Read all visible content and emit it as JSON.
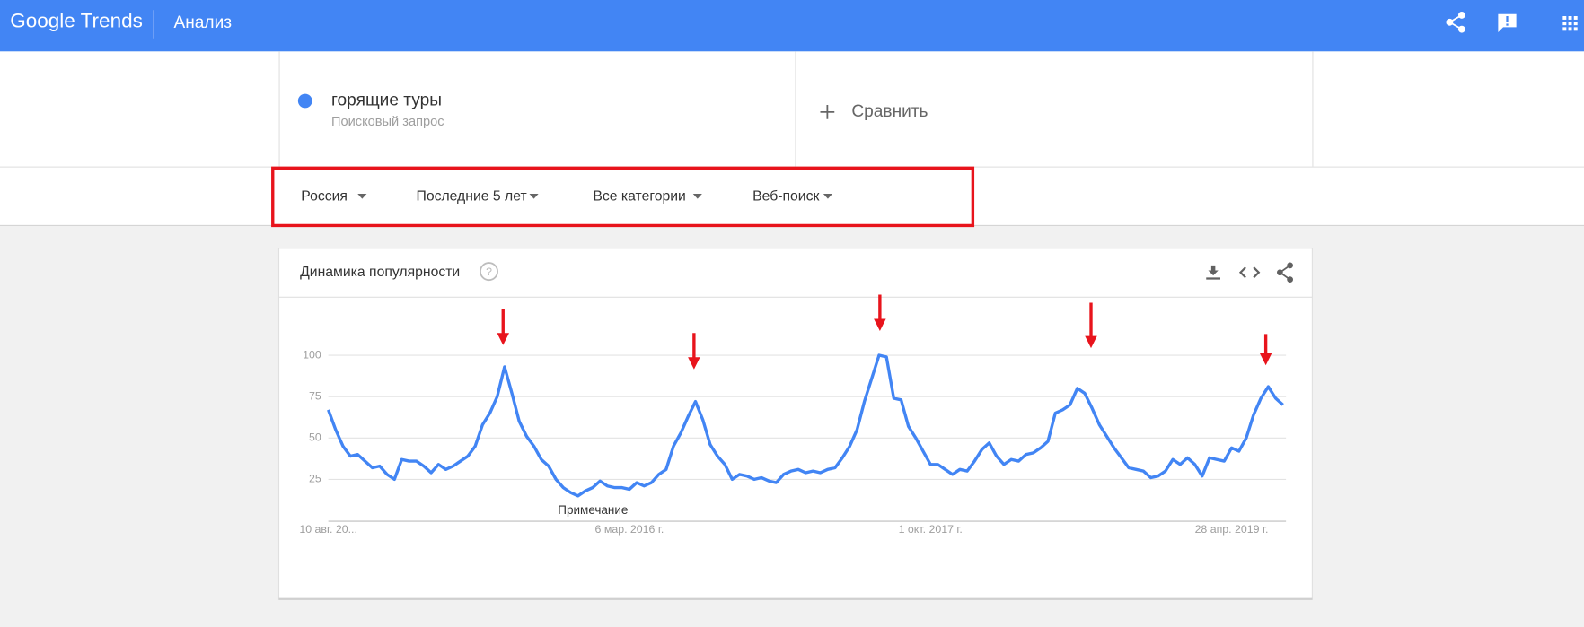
{
  "header": {
    "logo": "Google Trends",
    "section": "Анализ"
  },
  "search": {
    "term": "горящие туры",
    "term_type": "Поисковый запрос",
    "compare": "Сравнить"
  },
  "filters": [
    "Россия",
    "Последние 5 лет",
    "Все категории",
    "Веб-поиск"
  ],
  "chart_data": {
    "type": "line",
    "title": "Динамика популярности",
    "annotation": "Примечание",
    "categories": [
      "10 авг. 20...",
      null,
      null,
      null,
      null,
      null,
      null,
      null,
      null,
      null,
      null,
      null,
      null,
      null,
      null,
      null,
      null,
      null,
      null,
      null,
      null,
      null,
      null,
      null,
      null,
      null,
      null,
      null,
      null,
      null,
      null,
      null,
      null,
      null,
      null,
      null,
      null,
      null,
      null,
      null,
      null,
      "6 мар. 2016 г.",
      null,
      null,
      null,
      null,
      null,
      null,
      null,
      null,
      null,
      null,
      null,
      null,
      null,
      null,
      null,
      null,
      null,
      null,
      null,
      null,
      null,
      null,
      null,
      null,
      null,
      null,
      null,
      null,
      null,
      null,
      null,
      null,
      null,
      null,
      null,
      null,
      null,
      null,
      null,
      null,
      "1 окт. 2017 г.",
      null,
      null,
      null,
      null,
      null,
      null,
      null,
      null,
      null,
      null,
      null,
      null,
      null,
      null,
      null,
      null,
      null,
      null,
      null,
      null,
      null,
      null,
      null,
      null,
      null,
      null,
      null,
      null,
      null,
      null,
      null,
      null,
      null,
      null,
      null,
      null,
      null,
      null,
      null,
      null,
      "28 апр. 2019 г.",
      null,
      null,
      null,
      null,
      null,
      null,
      null
    ],
    "values": [
      67,
      55,
      45,
      39,
      40,
      36,
      32,
      33,
      28,
      25,
      37,
      36,
      36,
      33,
      29,
      34,
      31,
      33,
      36,
      39,
      45,
      58,
      65,
      75,
      93,
      77,
      60,
      51,
      45,
      37,
      33,
      25,
      20,
      17,
      15,
      18,
      20,
      24,
      21,
      20,
      20,
      19,
      23,
      21,
      23,
      28,
      31,
      45,
      53,
      63,
      72,
      61,
      46,
      39,
      34,
      25,
      28,
      27,
      25,
      26,
      24,
      23,
      28,
      30,
      31,
      29,
      30,
      29,
      31,
      32,
      38,
      45,
      55,
      72,
      86,
      100,
      99,
      74,
      73,
      57,
      50,
      42,
      34,
      34,
      31,
      28,
      31,
      30,
      36,
      43,
      47,
      39,
      34,
      37,
      36,
      40,
      41,
      44,
      48,
      65,
      67,
      70,
      80,
      77,
      68,
      58,
      51,
      44,
      38,
      32,
      31,
      30,
      26,
      27,
      30,
      37,
      34,
      38,
      34,
      27,
      38,
      37,
      36,
      44,
      42,
      50,
      64,
      74,
      81,
      74,
      70
    ],
    "color": "#4285f4",
    "ylim": [
      0,
      100
    ],
    "yticks": [
      25,
      50,
      75,
      100
    ],
    "grid": true
  }
}
